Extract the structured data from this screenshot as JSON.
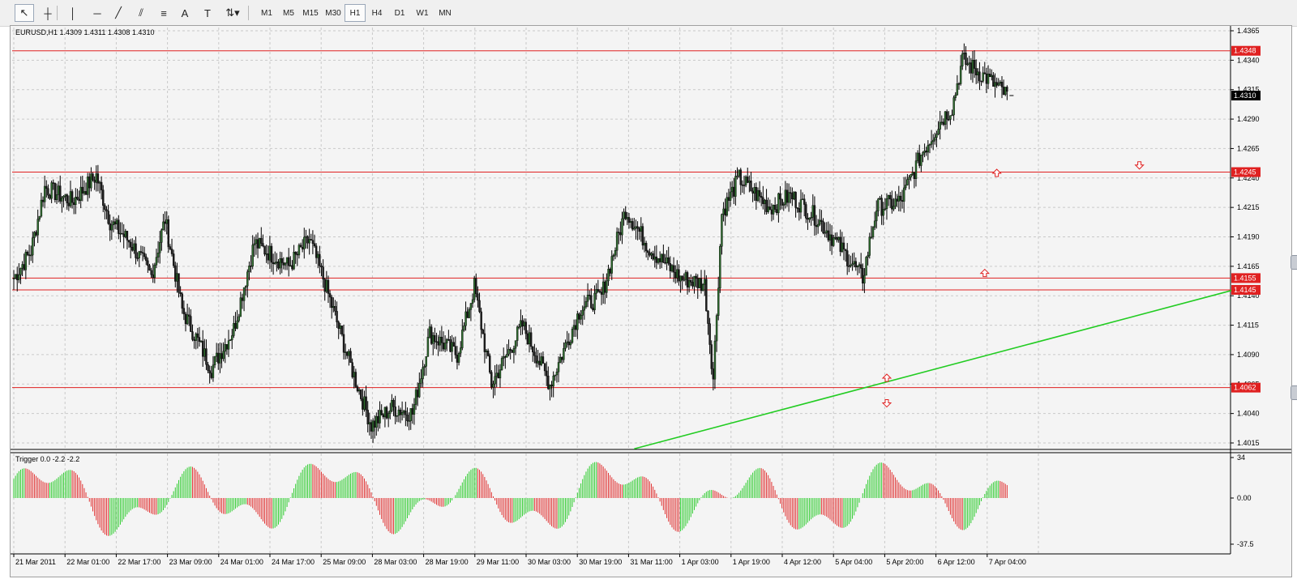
{
  "toolbar": {
    "tools": [
      {
        "name": "cursor-tool-button",
        "icon": "cursor-arrow-icon"
      },
      {
        "name": "crosshair-tool-button",
        "icon": "crosshair-icon"
      },
      {
        "name": "vertical-line-tool-button",
        "icon": "vertical-line-icon"
      },
      {
        "name": "horizontal-line-tool-button",
        "icon": "horizontal-line-icon"
      },
      {
        "name": "trendline-tool-button",
        "icon": "trendline-icon"
      },
      {
        "name": "equidistant-channel-tool-button",
        "icon": "channel-icon"
      },
      {
        "name": "fibonacci-tool-button",
        "icon": "fibonacci-icon"
      },
      {
        "name": "text-tool-button",
        "label": "A"
      },
      {
        "name": "text-label-tool-button",
        "label": "T"
      },
      {
        "name": "arrows-tool-button",
        "icon": "arrows-dropdown-icon"
      }
    ],
    "timeframes": [
      "M1",
      "M5",
      "M15",
      "M30",
      "H1",
      "H4",
      "D1",
      "W1",
      "MN"
    ],
    "active_timeframe": "H1"
  },
  "chart": {
    "header": "EURUSD,H1  1.4309 1.4311 1.4308 1.4310",
    "price_axis": [
      "1.4365",
      "1.4340",
      "1.4315",
      "1.4290",
      "1.4265",
      "1.4240",
      "1.4215",
      "1.4190",
      "1.4165",
      "1.4140",
      "1.4115",
      "1.4090",
      "1.4065",
      "1.4040",
      "1.4015"
    ],
    "price_axis_values": [
      1.4365,
      1.434,
      1.4315,
      1.429,
      1.4265,
      1.424,
      1.4215,
      1.419,
      1.4165,
      1.414,
      1.4115,
      1.409,
      1.4065,
      1.404,
      1.4015
    ],
    "horizontal_lines": [
      {
        "label": "1.4348",
        "price": 1.4348
      },
      {
        "label": "1.4245",
        "price": 1.4245
      },
      {
        "label": "1.4155",
        "price": 1.4155
      },
      {
        "label": "1.4145",
        "price": 1.4145
      },
      {
        "label": "1.4062",
        "price": 1.4062
      }
    ],
    "current_price": "1.4310",
    "current_price_value": 1.431,
    "time_axis": [
      "21 Mar 2011",
      "22 Mar 01:00",
      "22 Mar 17:00",
      "23 Mar 09:00",
      "24 Mar 01:00",
      "24 Mar 17:00",
      "25 Mar 09:00",
      "28 Mar 03:00",
      "28 Mar 19:00",
      "29 Mar 11:00",
      "30 Mar 03:00",
      "30 Mar 19:00",
      "31 Mar 11:00",
      "1 Apr 03:00",
      "1 Apr 19:00",
      "4 Apr 12:00",
      "5 Apr 04:00",
      "5 Apr 20:00",
      "6 Apr 12:00",
      "7 Apr 04:00"
    ],
    "colors": {
      "background": "#f4f4f4",
      "grid": "#c9c9c9",
      "candle_up": "#2e6b2e",
      "candle_down": "#1c1c1c",
      "level_line": "#e02020",
      "trendline": "#22cc22",
      "hist_up": "#2ecc2e",
      "hist_down": "#e03030"
    },
    "price_path_anchors": [
      {
        "t": 0,
        "p": 1.4155
      },
      {
        "t": 10,
        "p": 1.4178
      },
      {
        "t": 18,
        "p": 1.4232
      },
      {
        "t": 34,
        "p": 1.422
      },
      {
        "t": 48,
        "p": 1.4242
      },
      {
        "t": 56,
        "p": 1.4203
      },
      {
        "t": 68,
        "p": 1.4185
      },
      {
        "t": 80,
        "p": 1.4157
      },
      {
        "t": 88,
        "p": 1.4205
      },
      {
        "t": 98,
        "p": 1.4128
      },
      {
        "t": 115,
        "p": 1.4078
      },
      {
        "t": 128,
        "p": 1.4112
      },
      {
        "t": 140,
        "p": 1.4185
      },
      {
        "t": 160,
        "p": 1.4165
      },
      {
        "t": 172,
        "p": 1.4188
      },
      {
        "t": 180,
        "p": 1.4155
      },
      {
        "t": 195,
        "p": 1.4085
      },
      {
        "t": 208,
        "p": 1.403
      },
      {
        "t": 220,
        "p": 1.4045
      },
      {
        "t": 232,
        "p": 1.404
      },
      {
        "t": 242,
        "p": 1.4108
      },
      {
        "t": 258,
        "p": 1.409
      },
      {
        "t": 268,
        "p": 1.4148
      },
      {
        "t": 278,
        "p": 1.4065
      },
      {
        "t": 296,
        "p": 1.4115
      },
      {
        "t": 312,
        "p": 1.4065
      },
      {
        "t": 330,
        "p": 1.413
      },
      {
        "t": 342,
        "p": 1.414
      },
      {
        "t": 356,
        "p": 1.4213
      },
      {
        "t": 370,
        "p": 1.418
      },
      {
        "t": 388,
        "p": 1.4155
      },
      {
        "t": 402,
        "p": 1.415
      },
      {
        "t": 407,
        "p": 1.407
      },
      {
        "t": 412,
        "p": 1.421
      },
      {
        "t": 422,
        "p": 1.424
      },
      {
        "t": 440,
        "p": 1.4215
      },
      {
        "t": 452,
        "p": 1.4225
      },
      {
        "t": 468,
        "p": 1.4205
      },
      {
        "t": 484,
        "p": 1.4175
      },
      {
        "t": 494,
        "p": 1.4155
      },
      {
        "t": 502,
        "p": 1.4215
      },
      {
        "t": 516,
        "p": 1.422
      },
      {
        "t": 528,
        "p": 1.426
      },
      {
        "t": 540,
        "p": 1.429
      },
      {
        "t": 546,
        "p": 1.43
      },
      {
        "t": 552,
        "p": 1.434
      },
      {
        "t": 566,
        "p": 1.4325
      },
      {
        "t": 578,
        "p": 1.431
      }
    ],
    "arrow_markers": [
      {
        "type": "up",
        "t": 572,
        "p": 1.4244
      },
      {
        "type": "down",
        "t": 655,
        "p": 1.4251
      },
      {
        "type": "up",
        "t": 565,
        "p": 1.4159
      },
      {
        "type": "up",
        "t": 508,
        "p": 1.407
      },
      {
        "type": "down",
        "t": 508,
        "p": 1.4049
      }
    ],
    "trendline_points": [
      {
        "t": 361,
        "p": 1.401
      },
      {
        "t": 710,
        "p": 1.4145
      }
    ]
  },
  "indicator": {
    "header": "Trigger 0.0 -2.2 -2.2",
    "axis": [
      "34",
      "0.00",
      "-37.5"
    ],
    "axis_values": [
      34,
      0,
      -37.5
    ]
  }
}
